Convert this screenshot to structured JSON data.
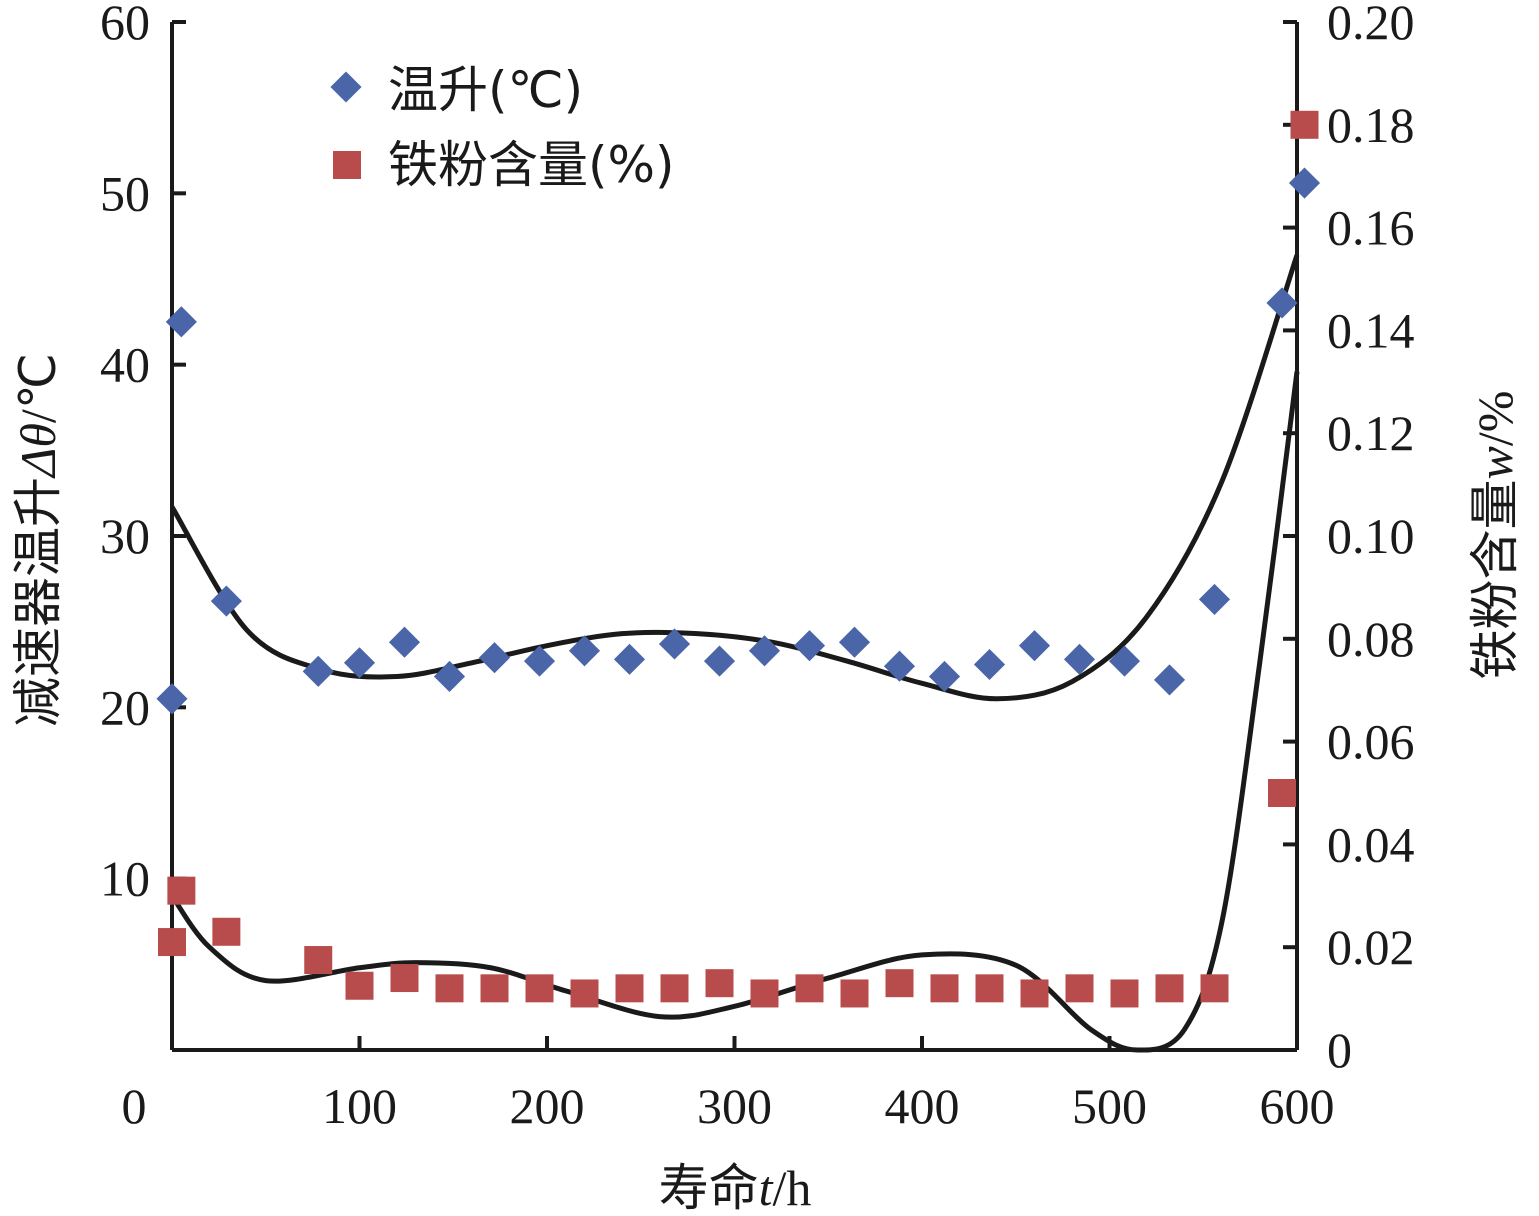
{
  "chart_data": {
    "type": "scatter",
    "x_axis": {
      "label_prefix": "寿命",
      "label_var": "t",
      "label_unit": "/h",
      "ticks": [
        "0",
        "100",
        "200",
        "300",
        "400",
        "500",
        "600"
      ],
      "range": [
        0,
        600
      ]
    },
    "y_axis_left": {
      "label_prefix": "减速器温升",
      "label_var": "Δθ",
      "label_unit": "/℃",
      "ticks": [
        "60",
        "50",
        "40",
        "30",
        "20",
        "10"
      ],
      "range": [
        0,
        60
      ]
    },
    "y_axis_right": {
      "label_prefix": "铁粉含量",
      "label_var": "w",
      "label_unit": "/%",
      "ticks": [
        "0.20",
        "0.18",
        "0.16",
        "0.14",
        "0.12",
        "0.10",
        "0.08",
        "0.06",
        "0.04",
        "0.02",
        "0"
      ],
      "range": [
        0,
        0.2
      ]
    },
    "legend_position": "top-left",
    "series": [
      {
        "name": "温升(℃)",
        "axis": "left",
        "marker": "diamond",
        "color": "#4a66a8",
        "points": [
          [
            0,
            20.5
          ],
          [
            5,
            42.5
          ],
          [
            29,
            26.2
          ],
          [
            78,
            22.1
          ],
          [
            100,
            22.6
          ],
          [
            124,
            23.8
          ],
          [
            148,
            21.8
          ],
          [
            172,
            22.9
          ],
          [
            196,
            22.7
          ],
          [
            220,
            23.3
          ],
          [
            244,
            22.8
          ],
          [
            268,
            23.7
          ],
          [
            292,
            22.7
          ],
          [
            316,
            23.3
          ],
          [
            340,
            23.6
          ],
          [
            364,
            23.8
          ],
          [
            388,
            22.4
          ],
          [
            412,
            21.8
          ],
          [
            436,
            22.5
          ],
          [
            460,
            23.6
          ],
          [
            484,
            22.8
          ],
          [
            508,
            22.7
          ],
          [
            532,
            21.6
          ],
          [
            556,
            26.3
          ],
          [
            592,
            43.6
          ],
          [
            604,
            50.6
          ]
        ],
        "trend": [
          [
            0,
            31.7
          ],
          [
            40,
            24.5
          ],
          [
            80,
            22.2
          ],
          [
            120,
            21.8
          ],
          [
            160,
            22.6
          ],
          [
            200,
            23.6
          ],
          [
            240,
            24.3
          ],
          [
            280,
            24.3
          ],
          [
            320,
            23.8
          ],
          [
            360,
            22.7
          ],
          [
            400,
            21.4
          ],
          [
            440,
            20.5
          ],
          [
            480,
            21.5
          ],
          [
            520,
            25.3
          ],
          [
            560,
            33.2
          ],
          [
            600,
            46.4
          ]
        ]
      },
      {
        "name": "铁粉含量(%)",
        "axis": "right",
        "marker": "square",
        "color": "#b84c4c",
        "points": [
          [
            0,
            0.021
          ],
          [
            5,
            0.031
          ],
          [
            29,
            0.023
          ],
          [
            78,
            0.0175
          ],
          [
            100,
            0.0125
          ],
          [
            124,
            0.014
          ],
          [
            148,
            0.012
          ],
          [
            172,
            0.012
          ],
          [
            196,
            0.012
          ],
          [
            220,
            0.011
          ],
          [
            244,
            0.012
          ],
          [
            268,
            0.012
          ],
          [
            292,
            0.013
          ],
          [
            316,
            0.011
          ],
          [
            340,
            0.012
          ],
          [
            364,
            0.011
          ],
          [
            388,
            0.013
          ],
          [
            412,
            0.012
          ],
          [
            436,
            0.012
          ],
          [
            460,
            0.011
          ],
          [
            484,
            0.012
          ],
          [
            508,
            0.011
          ],
          [
            532,
            0.012
          ],
          [
            556,
            0.012
          ],
          [
            592,
            0.05
          ],
          [
            604,
            0.18
          ]
        ],
        "trend": [
          [
            0,
            0.03
          ],
          [
            20,
            0.02
          ],
          [
            50,
            0.0135
          ],
          [
            100,
            0.016
          ],
          [
            130,
            0.017
          ],
          [
            170,
            0.016
          ],
          [
            210,
            0.0115
          ],
          [
            260,
            0.0065
          ],
          [
            300,
            0.0085
          ],
          [
            350,
            0.014
          ],
          [
            400,
            0.0185
          ],
          [
            450,
            0.0165
          ],
          [
            490,
            0.004
          ],
          [
            515,
            0.0
          ],
          [
            540,
            0.004
          ],
          [
            560,
            0.025
          ],
          [
            580,
            0.075
          ],
          [
            600,
            0.132
          ]
        ]
      }
    ]
  }
}
